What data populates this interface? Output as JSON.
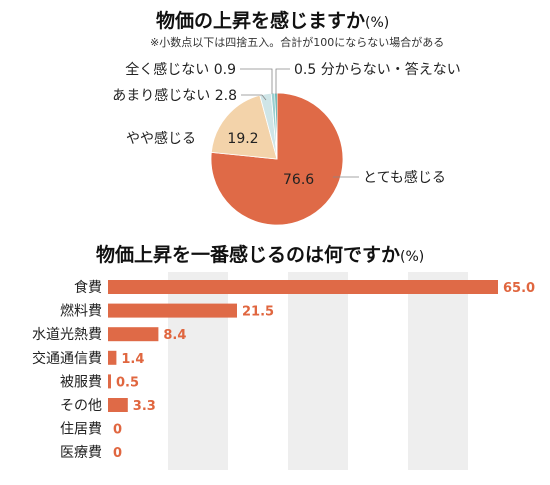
{
  "chart_data": [
    {
      "type": "pie",
      "title": "物価の上昇を感じますか",
      "unit": "(%)",
      "note": "※小数点以下は四捨五入。合計が100にならない場合がある",
      "slices": [
        {
          "label": "とても感じる",
          "value": 76.6,
          "value_text": "76.6",
          "color": "#df6a47"
        },
        {
          "label": "やや感じる",
          "value": 19.2,
          "value_text": "19.2",
          "color": "#f3d3aa"
        },
        {
          "label": "あまり感じない",
          "value": 2.8,
          "value_text": "2.8",
          "color": "#cfe5e7"
        },
        {
          "label": "全く感じない",
          "value": 0.9,
          "value_text": "0.9",
          "color": "#9bcfd0"
        },
        {
          "label": "分からない・答えない",
          "value": 0.5,
          "value_text": "0.5",
          "color": "#1f8f89"
        }
      ]
    },
    {
      "type": "bar",
      "orientation": "horizontal",
      "title": "物価上昇を一番感じるのは何ですか",
      "unit": "(%)",
      "categories": [
        "食費",
        "燃料費",
        "水道光熱費",
        "交通通信費",
        "被服費",
        "その他",
        "住居費",
        "医療費"
      ],
      "values": [
        65.0,
        21.5,
        8.4,
        1.4,
        0.5,
        3.3,
        0,
        0
      ],
      "value_labels": [
        "65.0",
        "21.5",
        "8.4",
        "1.4",
        "0.5",
        "3.3",
        "0",
        "0"
      ],
      "xlim": [
        0,
        70
      ],
      "bar_color": "#df6a47",
      "grid": "alternating vertical bands"
    }
  ]
}
